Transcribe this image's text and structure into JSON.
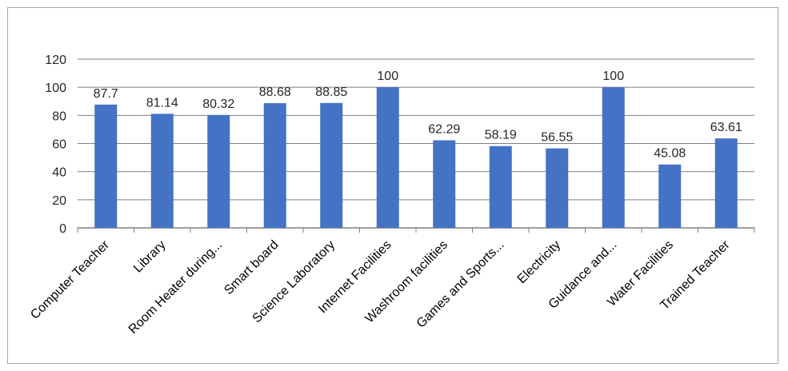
{
  "chart_data": {
    "type": "bar",
    "categories": [
      "Computer Teacher",
      "Library",
      "Room Heater during...",
      "Smart board",
      "Science Laboratory",
      "Internet Facilities",
      "Washroom facilities",
      "Games and Sports...",
      "Electricity",
      "Guidance and...",
      "Water Facilities",
      "Trained Teacher"
    ],
    "values": [
      87.7,
      81.14,
      80.32,
      88.68,
      88.85,
      100,
      62.29,
      58.19,
      56.55,
      100,
      45.08,
      63.61
    ],
    "data_labels": [
      "87.7",
      "81.14",
      "80.32",
      "88.68",
      "88.85",
      "100",
      "62.29",
      "58.19",
      "56.55",
      "100",
      "45.08",
      "63.61"
    ],
    "y_ticks": [
      "0",
      "20",
      "40",
      "60",
      "80",
      "100",
      "120"
    ],
    "ylim": [
      0,
      120
    ],
    "grid": true,
    "legend": "none",
    "bar_color": "#4472c4",
    "grid_color": "#7f7f7f",
    "title": "",
    "xlabel": "",
    "ylabel": ""
  }
}
